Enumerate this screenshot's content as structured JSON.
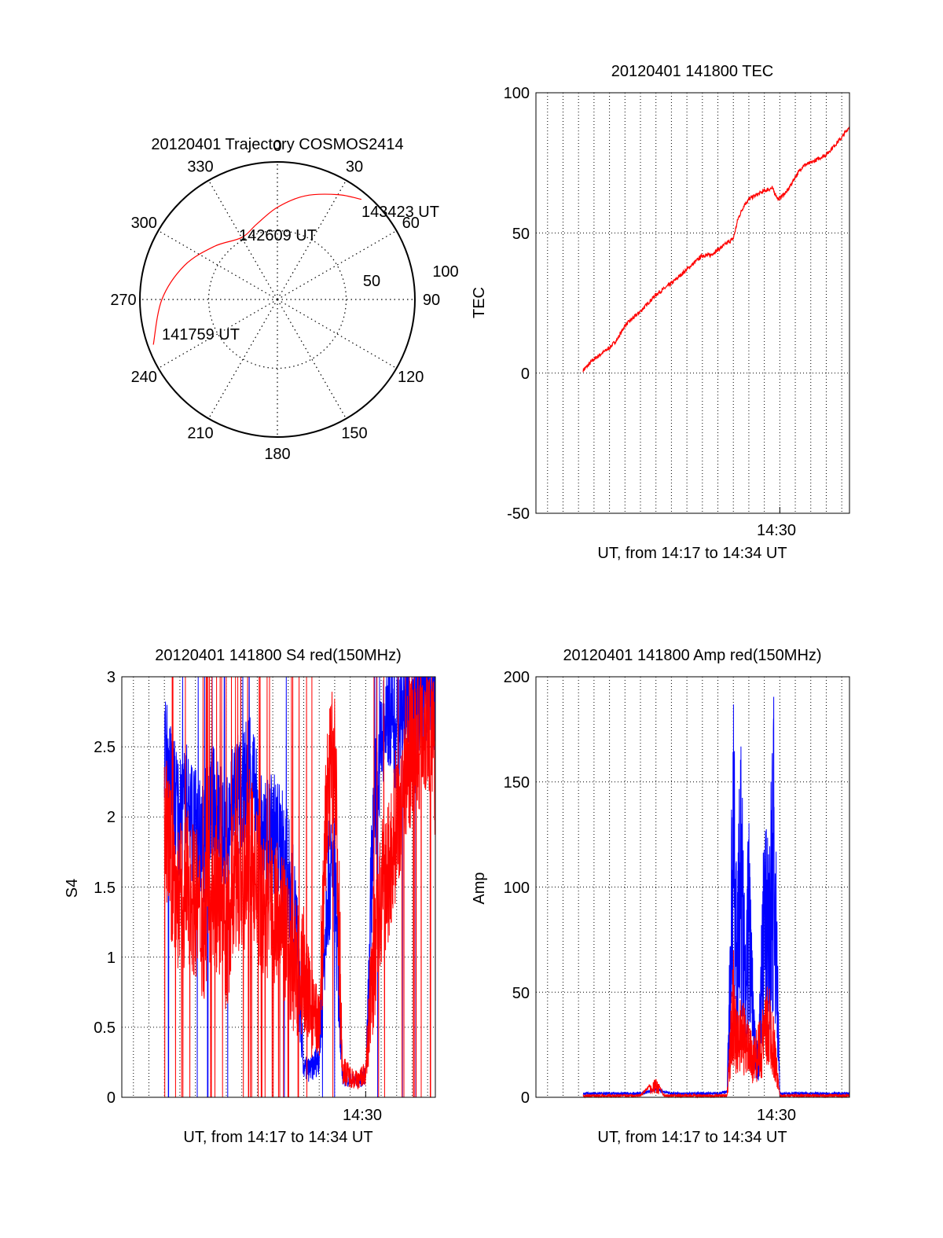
{
  "figure": {
    "panels": {
      "trajectory": {
        "title": "20120401 Trajectory COSMOS2414",
        "azimuth_labels": [
          "0",
          "30",
          "60",
          "90",
          "120",
          "150",
          "180",
          "210",
          "240",
          "270",
          "300",
          "330"
        ],
        "ring_labels": [
          "50",
          "100"
        ],
        "point_labels": {
          "start": "141759 UT",
          "middle": "142609 UT",
          "end": "143423 UT"
        },
        "trace_color": "#ff0000"
      },
      "tec": {
        "title": "20120401 141800 TEC",
        "ylabel": "TEC",
        "xlabel": "UT, from 14:17 to 14:34 UT",
        "x_tick_label": "14:30",
        "y_tick_labels": [
          "-50",
          "0",
          "50",
          "100"
        ]
      },
      "s4": {
        "title": "20120401 141800 S4 red(150MHz)",
        "ylabel": "S4",
        "xlabel": "UT, from 14:17 to 14:34 UT",
        "x_tick_label": "14:30",
        "y_tick_labels": [
          "0",
          "0.5",
          "1",
          "1.5",
          "2",
          "2.5",
          "3"
        ]
      },
      "amp": {
        "title": "20120401 141800 Amp red(150MHz)",
        "ylabel": "Amp",
        "xlabel": "UT, from 14:17 to 14:34 UT",
        "x_tick_label": "14:30",
        "y_tick_labels": [
          "0",
          "50",
          "100",
          "150",
          "200"
        ]
      }
    }
  },
  "chart_data": [
    {
      "type": "polar-trajectory",
      "title": "20120401 Trajectory COSMOS2414",
      "azimuth_ticks": [
        0,
        30,
        60,
        90,
        120,
        150,
        180,
        210,
        240,
        270,
        300,
        330
      ],
      "radial_ticks": [
        50,
        100
      ],
      "r_max": 100,
      "series": [
        {
          "color": "#ff0000",
          "points": [
            [
              250,
              96
            ],
            [
              270,
              84
            ],
            [
              290,
              72
            ],
            [
              310,
              60
            ],
            [
              330,
              52
            ],
            [
              345,
              57
            ],
            [
              0,
              67
            ],
            [
              15,
              78
            ],
            [
              30,
              88
            ],
            [
              40,
              95
            ]
          ]
        }
      ],
      "annotations": [
        {
          "label": "141759 UT",
          "az": 250,
          "r": 96
        },
        {
          "label": "142609 UT",
          "az": 338,
          "r": 55
        },
        {
          "label": "143423 UT",
          "az": 40,
          "r": 95
        }
      ]
    },
    {
      "type": "line",
      "title": "20120401 141800 TEC",
      "xlabel": "UT, from 14:17 to 14:34 UT",
      "ylabel": "TEC",
      "xlim_minutes": [
        14.25,
        34.5
      ],
      "ylim": [
        -50,
        100
      ],
      "y_ticks": [
        -50,
        0,
        50,
        100
      ],
      "x_tick": {
        "minute": 30,
        "label": "14:30"
      },
      "grid": true,
      "series": [
        {
          "color": "#ff0000",
          "x": [
            17.3,
            18.0,
            19.0,
            19.5,
            20.0,
            21.0,
            22.0,
            23.0,
            24.0,
            25.0,
            25.5,
            26.0,
            27.0,
            27.3,
            27.7,
            28.0,
            28.3,
            29.0,
            29.5,
            29.9,
            30.5,
            31.0,
            31.5,
            32.0,
            33.0,
            34.0,
            34.5
          ],
          "y": [
            1,
            5,
            9,
            12,
            17,
            22,
            28,
            32,
            37,
            42,
            42,
            44,
            48,
            55,
            60,
            62,
            63,
            65,
            66,
            62,
            65,
            70,
            74,
            75,
            78,
            84,
            88
          ]
        }
      ]
    },
    {
      "type": "line",
      "title": "20120401 141800 S4 red(150MHz)",
      "xlabel": "UT, from 14:17 to 14:34 UT",
      "ylabel": "S4",
      "xlim_minutes": [
        14.25,
        34.5
      ],
      "ylim": [
        0,
        3
      ],
      "y_ticks": [
        0,
        0.5,
        1,
        1.5,
        2,
        2.5,
        3
      ],
      "x_tick": {
        "minute": 30,
        "label": "14:30"
      },
      "grid": true,
      "series": [
        {
          "color": "#0000ff",
          "x": [
            17.0,
            17.5,
            18.0,
            18.5,
            19.0,
            19.5,
            20.0,
            20.5,
            21.0,
            21.5,
            22.0,
            22.5,
            23.0,
            23.5,
            24.0,
            24.5,
            25.0,
            25.5,
            26.0,
            26.5,
            27.0,
            27.5,
            28.0,
            28.5,
            29.0,
            29.5,
            30.0,
            30.5,
            31.0,
            31.5,
            32.0,
            32.5,
            33.0,
            33.5,
            34.0,
            34.5
          ],
          "y": [
            2.5,
            2.2,
            2.0,
            2.1,
            1.9,
            1.8,
            2.1,
            2.0,
            1.8,
            2.2,
            2.1,
            2.4,
            2.0,
            1.8,
            1.9,
            1.8,
            1.6,
            1.2,
            0.2,
            0.2,
            0.3,
            1.5,
            1.6,
            0.15,
            0.12,
            0.12,
            0.15,
            2.0,
            2.5,
            2.8,
            2.6,
            3.0,
            2.7,
            2.9,
            3.0,
            2.8
          ]
        },
        {
          "color": "#ff0000",
          "x": [
            17.0,
            17.5,
            18.0,
            18.5,
            19.0,
            19.5,
            20.0,
            20.5,
            21.0,
            21.5,
            22.0,
            22.5,
            23.0,
            23.5,
            24.0,
            24.5,
            25.0,
            25.5,
            26.0,
            26.5,
            27.0,
            27.5,
            28.0,
            28.5,
            29.0,
            29.5,
            30.0,
            30.5,
            31.0,
            31.5,
            32.0,
            32.5,
            33.0,
            33.5,
            34.0,
            34.5
          ],
          "y": [
            2.0,
            1.6,
            1.4,
            1.5,
            1.4,
            1.2,
            1.5,
            1.4,
            1.1,
            1.6,
            1.5,
            1.8,
            1.5,
            1.3,
            1.4,
            1.2,
            1.1,
            0.9,
            0.9,
            0.6,
            0.5,
            2.1,
            2.5,
            0.2,
            0.15,
            0.12,
            0.18,
            1.0,
            1.4,
            1.6,
            2.0,
            2.3,
            2.5,
            2.6,
            2.7,
            2.4
          ]
        }
      ]
    },
    {
      "type": "line",
      "title": "20120401 141800 Amp red(150MHz)",
      "xlabel": "UT, from 14:17 to 14:34 UT",
      "ylabel": "Amp",
      "xlim_minutes": [
        14.25,
        34.5
      ],
      "ylim": [
        0,
        200
      ],
      "y_ticks": [
        0,
        50,
        100,
        150,
        200
      ],
      "x_tick": {
        "minute": 30,
        "label": "14:30"
      },
      "grid": true,
      "series": [
        {
          "color": "#0000ff",
          "x": [
            17.3,
            20.0,
            21.0,
            22.0,
            23.0,
            25.0,
            26.0,
            26.6,
            27.0,
            27.2,
            27.5,
            27.8,
            28.0,
            28.3,
            28.6,
            29.0,
            29.3,
            29.6,
            30.0,
            30.5,
            31.0,
            32.0,
            34.5
          ],
          "y": [
            1,
            1,
            1,
            3,
            1,
            1,
            1,
            2,
            170,
            95,
            150,
            60,
            130,
            40,
            20,
            120,
            105,
            170,
            1,
            1,
            1,
            1,
            1
          ]
        },
        {
          "color": "#ff0000",
          "x": [
            17.3,
            21.0,
            22.0,
            22.2,
            22.5,
            23.0,
            26.6,
            27.0,
            27.2,
            27.5,
            28.0,
            28.3,
            28.6,
            29.0,
            29.3,
            29.6,
            30.0,
            30.5,
            34.5
          ],
          "y": [
            0,
            0,
            8,
            5,
            0,
            0,
            0,
            65,
            35,
            45,
            30,
            25,
            30,
            40,
            50,
            35,
            0,
            0,
            0
          ]
        }
      ]
    }
  ]
}
